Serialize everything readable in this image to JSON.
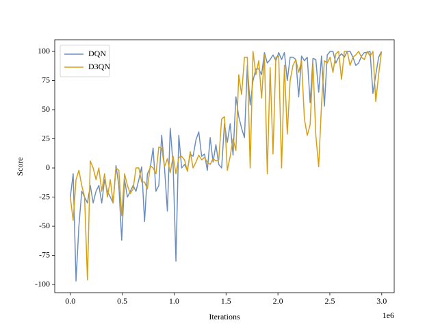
{
  "chart_data": {
    "type": "line",
    "x_label": "Iterations",
    "y_label": "Score",
    "x_offset_label": "1e6",
    "x": [
      0,
      27500,
      55000,
      82500,
      110000,
      137500,
      165000,
      192500,
      220000,
      247500,
      275000,
      302500,
      330000,
      357500,
      385000,
      412500,
      440000,
      467500,
      495000,
      522500,
      550000,
      577500,
      605000,
      632500,
      660000,
      687500,
      715000,
      742500,
      770000,
      797500,
      825000,
      852500,
      880000,
      907500,
      935000,
      962500,
      990000,
      1017500,
      1045000,
      1072500,
      1100000,
      1127500,
      1155000,
      1182500,
      1210000,
      1237500,
      1265000,
      1292500,
      1320000,
      1347500,
      1375000,
      1402500,
      1430000,
      1457500,
      1485000,
      1512500,
      1540000,
      1567500,
      1595000,
      1622500,
      1650000,
      1677500,
      1705000,
      1732500,
      1760000,
      1787500,
      1815000,
      1842500,
      1870000,
      1897500,
      1925000,
      1952500,
      1980000,
      2007500,
      2035000,
      2062500,
      2090000,
      2117500,
      2145000,
      2172500,
      2200000,
      2227500,
      2255000,
      2282500,
      2310000,
      2337500,
      2365000,
      2392500,
      2420000,
      2447500,
      2475000,
      2502500,
      2530000,
      2557500,
      2585000,
      2612500,
      2640000,
      2667500,
      2695000,
      2722500,
      2750000,
      2777500,
      2805000,
      2832500,
      2860000,
      2887500,
      2915000,
      2942500,
      2970000,
      2997500
    ],
    "series": [
      {
        "name": "DQN",
        "color": "#6c8ebf",
        "values": [
          -25,
          -5,
          -97,
          -50,
          -20,
          -25,
          -30,
          -15,
          -30,
          -20,
          -15,
          -30,
          -10,
          -20,
          -25,
          -30,
          2,
          -15,
          -62,
          -10,
          -25,
          -20,
          -15,
          -20,
          -10,
          1,
          -46,
          -5,
          0,
          17,
          -20,
          -15,
          28,
          0,
          -37,
          34,
          3,
          -80,
          28,
          0,
          3,
          -2,
          12,
          10,
          24,
          31,
          10,
          12,
          -2,
          26,
          5,
          20,
          3,
          0,
          38,
          22,
          38,
          11,
          61,
          44,
          34,
          26,
          88,
          54,
          75,
          85,
          85,
          80,
          99,
          90,
          93,
          97,
          92,
          99,
          93,
          99,
          75,
          95,
          95,
          93,
          61,
          96,
          92,
          95,
          56,
          94,
          93,
          65,
          96,
          53,
          97,
          100,
          100,
          90,
          95,
          98,
          95,
          100,
          100,
          95,
          88,
          90,
          96,
          99,
          99,
          100,
          64,
          80,
          95,
          100
        ]
      },
      {
        "name": "D3QN",
        "color": "#d89f12",
        "values": [
          -25,
          -45,
          -10,
          -2,
          -15,
          -25,
          -96,
          6,
          0,
          -10,
          0,
          -20,
          -5,
          -25,
          -10,
          -30,
          0,
          -2,
          -41,
          -5,
          -15,
          -22,
          -18,
          0,
          0,
          -12,
          -12,
          -18,
          2,
          0,
          -5,
          18,
          17,
          1,
          8,
          -4,
          10,
          -5,
          9,
          10,
          7,
          -3,
          14,
          0,
          5,
          11,
          7,
          9,
          5,
          3,
          8,
          6,
          7,
          42,
          44,
          -2,
          10,
          25,
          15,
          80,
          63,
          95,
          95,
          0,
          100,
          80,
          92,
          60,
          97,
          -5,
          86,
          12,
          95,
          96,
          0,
          88,
          29,
          75,
          88,
          93,
          82,
          92,
          42,
          28,
          37,
          90,
          28,
          1,
          55,
          92,
          90,
          95,
          82,
          98,
          100,
          76,
          100,
          100,
          88,
          95,
          97,
          100,
          95,
          93,
          100,
          96,
          100,
          57,
          80,
          100
        ]
      }
    ],
    "xlim": [
      -150000,
      3120000
    ],
    "xticks": [
      {
        "value": 0,
        "label": "0.0"
      },
      {
        "value": 500000,
        "label": "0.5"
      },
      {
        "value": 1000000,
        "label": "1.0"
      },
      {
        "value": 1500000,
        "label": "1.5"
      },
      {
        "value": 2000000,
        "label": "2.0"
      },
      {
        "value": 2500000,
        "label": "2.5"
      },
      {
        "value": 3000000,
        "label": "3.0"
      }
    ],
    "ylim": [
      -107,
      110
    ],
    "yticks": [
      -100,
      -75,
      -50,
      -25,
      0,
      25,
      50,
      75,
      100
    ],
    "legend": "upper left",
    "grid": false
  }
}
